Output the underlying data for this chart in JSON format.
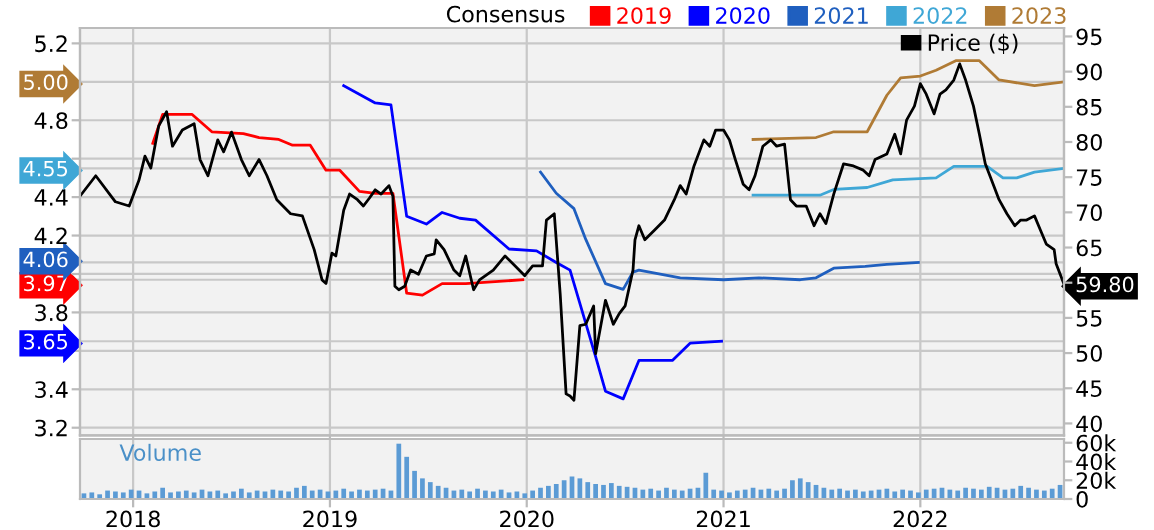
{
  "chart_data": [
    {
      "type": "line",
      "legend": "top",
      "legend_title": "Consensus",
      "grid": true,
      "tick_labels": "y",
      "xlim": [
        2017.73,
        2022.73
      ],
      "xticks": [
        2018,
        2019,
        2020,
        2021,
        2022
      ],
      "ylim": [
        3.16,
        5.28
      ],
      "yticks": [
        3.2,
        3.4,
        {
          "value": 3.6,
          "label": null
        },
        {
          "value": 3.65,
          "label": "3.65"
        },
        3.8,
        {
          "value": 3.97,
          "label": "3.97"
        },
        {
          "value": 4.0,
          "label": null
        },
        {
          "value": 4.06,
          "label": "4.06"
        },
        4.2,
        4.4,
        {
          "value": 4.55,
          "label": "4.55"
        },
        {
          "value": 4.6,
          "label": null
        },
        4.8,
        {
          "value": 5.0,
          "label": "5.00"
        },
        5.2
      ],
      "y2lim": [
        38.3,
        96.2
      ],
      "y2ticks": [
        40,
        45,
        50,
        55,
        {
          "value": 59.8,
          "label": "59.80"
        },
        {
          "value": 60,
          "label": null
        },
        65,
        70,
        75,
        80,
        85,
        90,
        95
      ],
      "series": [
        {
          "name": "2019",
          "color": "#ff0000",
          "axis": "y",
          "x": [
            2018.1,
            2018.15,
            2018.3,
            2018.4,
            2018.56,
            2018.64,
            2018.74,
            2018.81,
            2018.9,
            2018.98,
            2019.05,
            2019.15,
            2019.23,
            2019.32,
            2019.39,
            2019.47,
            2019.57,
            2019.69,
            2019.98
          ],
          "values": [
            4.68,
            4.83,
            4.83,
            4.74,
            4.73,
            4.71,
            4.7,
            4.67,
            4.67,
            4.54,
            4.54,
            4.43,
            4.42,
            4.42,
            3.9,
            3.89,
            3.95,
            3.95,
            3.97
          ]
        },
        {
          "name": "2020",
          "color": "#0000ff",
          "axis": "y",
          "x": [
            2019.07,
            2019.23,
            2019.31,
            2019.39,
            2019.49,
            2019.57,
            2019.66,
            2019.74,
            2019.91,
            2020.05,
            2020.15,
            2020.22,
            2020.35,
            2020.4,
            2020.49,
            2020.57,
            2020.74,
            2020.83,
            2020.99
          ],
          "values": [
            4.98,
            4.89,
            4.88,
            4.3,
            4.26,
            4.32,
            4.29,
            4.28,
            4.13,
            4.12,
            4.06,
            4.02,
            3.57,
            3.39,
            3.35,
            3.55,
            3.55,
            3.64,
            3.65
          ]
        },
        {
          "name": "2021",
          "color": "#1f5fbf",
          "axis": "y",
          "x": [
            2020.07,
            2020.15,
            2020.24,
            2020.3,
            2020.4,
            2020.49,
            2020.54,
            2020.57,
            2020.78,
            2021.0,
            2021.18,
            2021.39,
            2021.47,
            2021.56,
            2021.72,
            2021.83,
            2021.99
          ],
          "values": [
            4.53,
            4.42,
            4.34,
            4.18,
            3.95,
            3.92,
            4.01,
            4.02,
            3.98,
            3.97,
            3.98,
            3.97,
            3.98,
            4.03,
            4.04,
            4.05,
            4.06
          ]
        },
        {
          "name": "2022",
          "color": "#3fa7d6",
          "axis": "y",
          "x": [
            2021.15,
            2021.49,
            2021.56,
            2021.73,
            2021.86,
            2022.08,
            2022.17,
            2022.34,
            2022.42,
            2022.49,
            2022.58,
            2022.73
          ],
          "values": [
            4.41,
            4.41,
            4.44,
            4.45,
            4.49,
            4.5,
            4.56,
            4.56,
            4.5,
            4.5,
            4.53,
            4.55
          ]
        },
        {
          "name": "2023",
          "color": "#b07b35",
          "axis": "y",
          "x": [
            2021.15,
            2021.47,
            2021.56,
            2021.73,
            2021.83,
            2021.9,
            2022.0,
            2022.08,
            2022.18,
            2022.3,
            2022.4,
            2022.58,
            2022.73
          ],
          "values": [
            4.7,
            4.71,
            4.74,
            4.74,
            4.93,
            5.02,
            5.03,
            5.06,
            5.11,
            5.11,
            5.01,
            4.98,
            5.0
          ]
        },
        {
          "name": "Price ($)",
          "color": "#000000",
          "axis": "y2",
          "x": [
            2017.73,
            2017.81,
            2017.91,
            2017.98,
            2018.03,
            2018.06,
            2018.09,
            2018.13,
            2018.17,
            2018.2,
            2018.25,
            2018.31,
            2018.34,
            2018.38,
            2018.43,
            2018.46,
            2018.5,
            2018.55,
            2018.59,
            2018.64,
            2018.68,
            2018.73,
            2018.8,
            2018.86,
            2018.92,
            2018.96,
            2018.98,
            2019.01,
            2019.03,
            2019.07,
            2019.1,
            2019.14,
            2019.17,
            2019.2,
            2019.23,
            2019.26,
            2019.3,
            2019.32,
            2019.33,
            2019.35,
            2019.38,
            2019.41,
            2019.45,
            2019.49,
            2019.53,
            2019.54,
            2019.58,
            2019.63,
            2019.66,
            2019.69,
            2019.73,
            2019.76,
            2019.83,
            2019.89,
            2019.94,
            2019.99,
            2020.03,
            2020.08,
            2020.1,
            2020.14,
            2020.17,
            2020.2,
            2020.22,
            2020.24,
            2020.27,
            2020.3,
            2020.34,
            2020.35,
            2020.4,
            2020.44,
            2020.47,
            2020.5,
            2020.54,
            2020.55,
            2020.57,
            2020.6,
            2020.65,
            2020.7,
            2020.75,
            2020.78,
            2020.81,
            2020.85,
            2020.9,
            2020.93,
            2020.96,
            2021.0,
            2021.03,
            2021.06,
            2021.1,
            2021.13,
            2021.16,
            2021.2,
            2021.24,
            2021.27,
            2021.31,
            2021.34,
            2021.37,
            2021.42,
            2021.46,
            2021.49,
            2021.52,
            2021.56,
            2021.61,
            2021.66,
            2021.71,
            2021.74,
            2021.77,
            2021.83,
            2021.87,
            2021.9,
            2021.93,
            2021.97,
            2022.0,
            2022.03,
            2022.07,
            2022.1,
            2022.13,
            2022.17,
            2022.2,
            2022.23,
            2022.27,
            2022.3,
            2022.33,
            2022.37,
            2022.4,
            2022.44,
            2022.48,
            2022.51,
            2022.54,
            2022.58,
            2022.61,
            2022.64,
            2022.68,
            2022.69,
            2022.73
          ],
          "values": [
            72.3,
            75.2,
            71.5,
            70.9,
            74.6,
            78.0,
            76.3,
            82.3,
            84.3,
            79.4,
            81.7,
            82.6,
            77.5,
            75.2,
            80.3,
            78.6,
            81.4,
            77.5,
            75.2,
            77.5,
            75.2,
            71.8,
            69.8,
            69.5,
            64.7,
            60.4,
            59.9,
            64.2,
            63.8,
            70.3,
            72.6,
            71.8,
            70.9,
            72.0,
            73.2,
            72.6,
            73.8,
            72.3,
            59.5,
            59.0,
            59.5,
            61.8,
            61.2,
            63.8,
            64.1,
            66.1,
            64.7,
            61.8,
            61.0,
            63.8,
            59.0,
            60.4,
            61.8,
            63.8,
            62.4,
            61.0,
            62.4,
            62.4,
            68.9,
            69.8,
            58.4,
            44.2,
            43.9,
            43.3,
            53.9,
            54.1,
            56.7,
            49.9,
            57.5,
            54.1,
            55.6,
            56.7,
            61.8,
            66.1,
            68.1,
            66.1,
            67.5,
            68.9,
            71.8,
            73.8,
            72.6,
            76.6,
            80.3,
            79.4,
            81.7,
            81.7,
            80.3,
            77.5,
            74.0,
            73.2,
            75.2,
            79.4,
            80.3,
            79.4,
            79.7,
            71.8,
            70.9,
            70.9,
            68.1,
            69.8,
            68.4,
            72.6,
            76.9,
            76.6,
            76.0,
            75.2,
            77.5,
            78.3,
            81.1,
            78.3,
            83.1,
            85.1,
            88.3,
            86.8,
            84.0,
            86.8,
            87.4,
            88.8,
            91.1,
            88.8,
            85.1,
            81.1,
            76.9,
            74.0,
            71.8,
            69.8,
            68.1,
            68.9,
            68.9,
            69.5,
            67.5,
            65.5,
            64.7,
            62.7,
            59.8
          ]
        }
      ]
    },
    {
      "type": "bar",
      "color": "#5b9bd5",
      "grid": "x",
      "annotations": [
        "Volume"
      ],
      "xlim": [
        2017.73,
        2022.73
      ],
      "xticks": [
        2018,
        2019,
        2020,
        2021,
        2022
      ],
      "ylim": [
        0,
        64000
      ],
      "yticks": [
        0,
        {
          "value": 20000,
          "label": "20k"
        },
        {
          "value": 40000,
          "label": "40k"
        },
        {
          "value": 60000,
          "label": "60k"
        }
      ],
      "x": [
        2017.75,
        2017.79,
        2017.83,
        2017.87,
        2017.91,
        2017.95,
        2017.99,
        2018.03,
        2018.07,
        2018.11,
        2018.15,
        2018.19,
        2018.23,
        2018.27,
        2018.31,
        2018.35,
        2018.39,
        2018.43,
        2018.47,
        2018.51,
        2018.55,
        2018.59,
        2018.63,
        2018.67,
        2018.71,
        2018.75,
        2018.79,
        2018.83,
        2018.87,
        2018.91,
        2018.95,
        2018.99,
        2019.03,
        2019.07,
        2019.11,
        2019.15,
        2019.19,
        2019.23,
        2019.27,
        2019.31,
        2019.35,
        2019.39,
        2019.43,
        2019.47,
        2019.51,
        2019.55,
        2019.59,
        2019.63,
        2019.67,
        2019.71,
        2019.75,
        2019.79,
        2019.83,
        2019.87,
        2019.91,
        2019.95,
        2019.99,
        2020.03,
        2020.07,
        2020.11,
        2020.15,
        2020.19,
        2020.23,
        2020.27,
        2020.31,
        2020.35,
        2020.39,
        2020.43,
        2020.47,
        2020.51,
        2020.55,
        2020.59,
        2020.63,
        2020.67,
        2020.71,
        2020.75,
        2020.79,
        2020.83,
        2020.87,
        2020.91,
        2020.95,
        2020.99,
        2021.03,
        2021.07,
        2021.11,
        2021.15,
        2021.19,
        2021.23,
        2021.27,
        2021.31,
        2021.35,
        2021.39,
        2021.43,
        2021.47,
        2021.51,
        2021.55,
        2021.59,
        2021.63,
        2021.67,
        2021.71,
        2021.75,
        2021.79,
        2021.83,
        2021.87,
        2021.91,
        2021.95,
        2021.99,
        2022.03,
        2022.07,
        2022.11,
        2022.15,
        2022.19,
        2022.23,
        2022.27,
        2022.31,
        2022.35,
        2022.39,
        2022.43,
        2022.47,
        2022.51,
        2022.55,
        2022.59,
        2022.63,
        2022.67,
        2022.71
      ],
      "values": [
        6000,
        7000,
        5000,
        9000,
        8000,
        7000,
        10000,
        9000,
        6000,
        8000,
        12000,
        7000,
        8000,
        9000,
        7000,
        10000,
        8000,
        9000,
        6000,
        8000,
        11000,
        7000,
        9000,
        8000,
        10000,
        9000,
        8000,
        12000,
        14000,
        9000,
        10000,
        8000,
        9000,
        11000,
        8000,
        10000,
        9000,
        10000,
        11000,
        9000,
        59000,
        45000,
        30000,
        22000,
        18000,
        14000,
        12000,
        9000,
        10000,
        8000,
        11000,
        9000,
        8000,
        10000,
        7000,
        8000,
        6000,
        9000,
        12000,
        14000,
        16000,
        20000,
        24000,
        22000,
        18000,
        16000,
        15000,
        17000,
        14000,
        13000,
        12000,
        10000,
        11000,
        9000,
        12000,
        10000,
        9000,
        11000,
        12000,
        28000,
        10000,
        9000,
        7000,
        9000,
        10000,
        12000,
        10000,
        11000,
        9000,
        11000,
        20000,
        22000,
        18000,
        15000,
        12000,
        10000,
        11000,
        9000,
        10000,
        8000,
        9000,
        10000,
        11000,
        8000,
        10000,
        9000,
        7000,
        10000,
        11000,
        12000,
        10000,
        9000,
        12000,
        11000,
        10000,
        13000,
        12000,
        10000,
        11000,
        14000,
        12000,
        10000,
        9000,
        11000,
        15000
      ]
    }
  ]
}
